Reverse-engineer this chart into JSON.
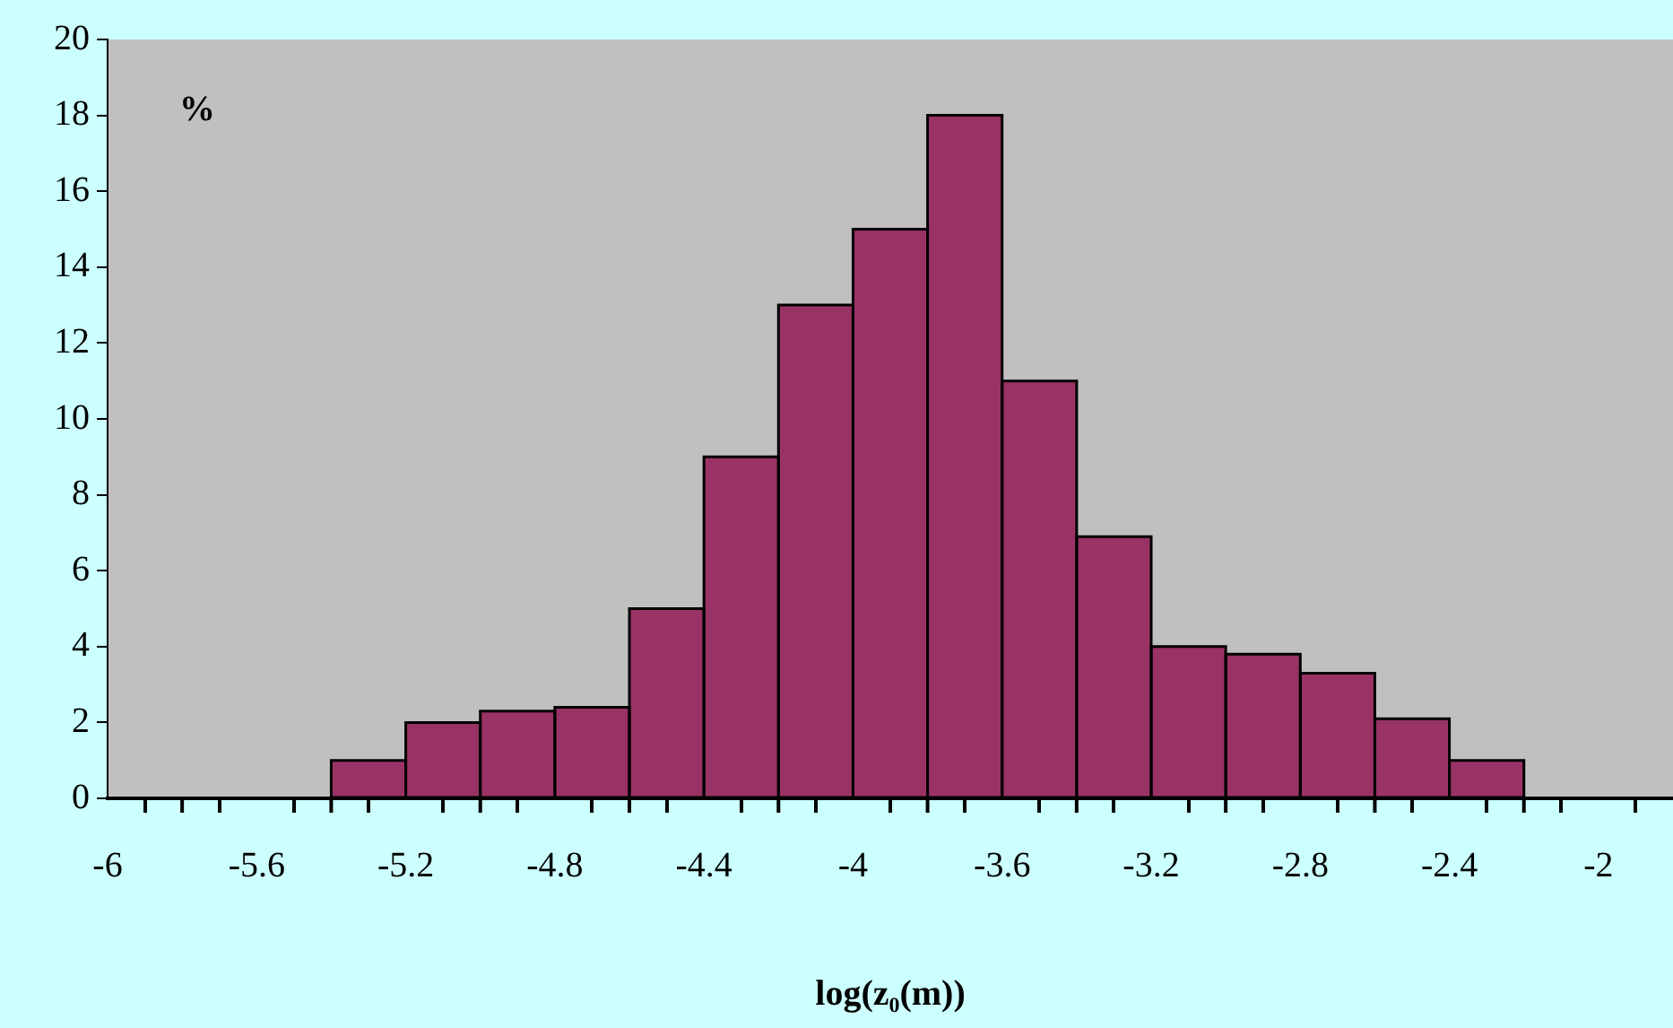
{
  "chart_data": {
    "type": "histogram",
    "xlabel": "log(z₀(m))",
    "ylabel": "%",
    "bins": [
      -5.4,
      -5.2,
      -5.0,
      -4.8,
      -4.6,
      -4.4,
      -4.2,
      -4.0,
      -3.8,
      -3.6,
      -3.4,
      -3.2,
      -3.0,
      -2.8,
      -2.6,
      -2.4,
      -2.2
    ],
    "values": [
      1,
      2,
      2.3,
      2.4,
      5,
      9,
      13,
      15,
      18,
      11,
      6.9,
      4,
      3.8,
      3.3,
      2.1,
      1
    ],
    "color": "#993366",
    "xlim": [
      -6,
      -1.8
    ],
    "xticks": [
      -6,
      {
        "value": -5.8,
        "label": null
      },
      -5.6,
      {
        "value": -5.4,
        "label": null
      },
      -5.2,
      {
        "value": -5.0,
        "label": null
      },
      -4.8,
      {
        "value": -4.6,
        "label": null
      },
      -4.4,
      {
        "value": -4.2,
        "label": null
      },
      -4,
      {
        "value": -3.8,
        "label": null
      },
      -3.6,
      {
        "value": -3.4,
        "label": null
      },
      -3.2,
      {
        "value": -3.0,
        "label": null
      },
      -2.8,
      {
        "value": -2.6,
        "label": null
      },
      -2.4,
      {
        "value": -2.2,
        "label": null
      },
      -2
    ],
    "ylim": [
      0,
      20
    ],
    "yticks": [
      0,
      2,
      4,
      6,
      8,
      10,
      12,
      14,
      16,
      18,
      20
    ],
    "legend": false
  }
}
